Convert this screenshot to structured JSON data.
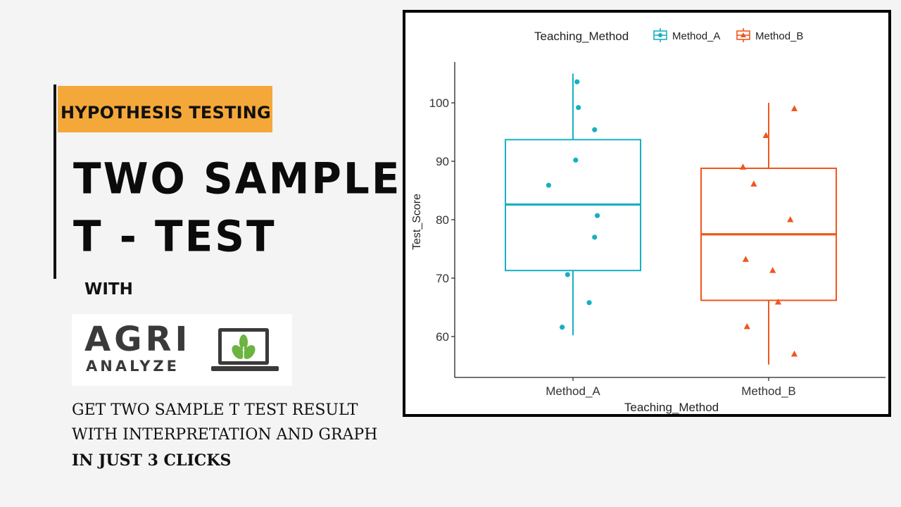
{
  "banner": {
    "tag": "HYPOTHESIS TESTING",
    "headline_line1": "TWO SAMPLE",
    "headline_line2": "T - TEST",
    "with": "WITH",
    "logo_top": "AGRI",
    "logo_bottom": "ANALYZE",
    "body_line1": "GET TWO SAMPLE T TEST RESULT",
    "body_line2": "WITH INTERPRETATION AND GRAPH",
    "body_line3": "IN JUST 3 CLICKS"
  },
  "colors": {
    "tag_background": "#f5a83a",
    "method_a": "#17b0c2",
    "method_b": "#f0561d",
    "logo_green": "#6bb43f"
  },
  "chart_data": {
    "type": "boxplot",
    "xlabel": "Teaching_Method",
    "ylabel": "Test_Score",
    "categories": [
      "Method_A",
      "Method_B"
    ],
    "ylim": [
      53,
      107
    ],
    "yticks": [
      60,
      70,
      80,
      90,
      100
    ],
    "legend": {
      "title": "Teaching_Method",
      "position": "top"
    },
    "grid": false,
    "series": [
      {
        "name": "Method_A",
        "shape": "circle",
        "whisker_low": 60.2,
        "q1": 71.3,
        "median": 82.6,
        "q3": 93.7,
        "whisker_high": 105,
        "points": [
          {
            "x_offset": 0.03,
            "y": 103.6
          },
          {
            "x_offset": 0.04,
            "y": 99.2
          },
          {
            "x_offset": 0.16,
            "y": 95.4
          },
          {
            "x_offset": 0.02,
            "y": 90.2
          },
          {
            "x_offset": -0.18,
            "y": 85.9
          },
          {
            "x_offset": 0.18,
            "y": 80.7
          },
          {
            "x_offset": 0.16,
            "y": 77.0
          },
          {
            "x_offset": -0.04,
            "y": 70.6
          },
          {
            "x_offset": 0.12,
            "y": 65.8
          },
          {
            "x_offset": -0.08,
            "y": 61.6
          }
        ]
      },
      {
        "name": "Method_B",
        "shape": "triangle",
        "whisker_low": 55.2,
        "q1": 66.2,
        "median": 77.5,
        "q3": 88.8,
        "whisker_high": 100,
        "points": [
          {
            "x_offset": 0.19,
            "y": 99.0
          },
          {
            "x_offset": -0.02,
            "y": 94.4
          },
          {
            "x_offset": -0.19,
            "y": 89.0
          },
          {
            "x_offset": -0.11,
            "y": 86.1
          },
          {
            "x_offset": 0.16,
            "y": 80.0
          },
          {
            "x_offset": -0.17,
            "y": 73.2
          },
          {
            "x_offset": 0.03,
            "y": 71.3
          },
          {
            "x_offset": 0.07,
            "y": 65.9
          },
          {
            "x_offset": -0.16,
            "y": 61.7
          },
          {
            "x_offset": 0.19,
            "y": 57.0
          }
        ]
      }
    ]
  }
}
